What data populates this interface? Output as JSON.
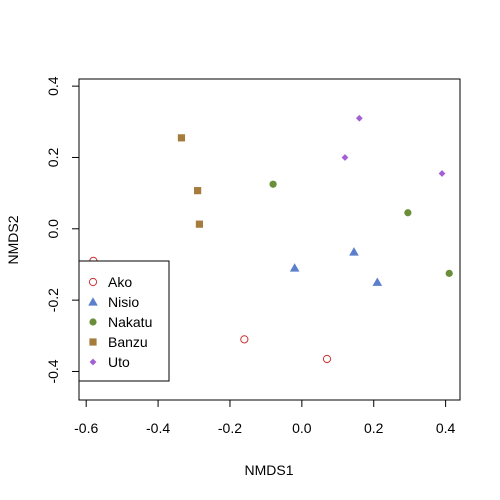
{
  "chart_data": {
    "type": "scatter",
    "title": "",
    "xlabel": "NMDS1",
    "ylabel": "NMDS2",
    "xlim": [
      -0.62,
      0.44
    ],
    "ylim": [
      -0.48,
      0.42
    ],
    "x_ticks": [
      -0.6,
      -0.4,
      -0.2,
      0.0,
      0.2,
      0.4
    ],
    "x_tick_labels": [
      "-0.6",
      "-0.4",
      "-0.2",
      "0.0",
      "0.2",
      "0.4"
    ],
    "y_ticks": [
      -0.4,
      -0.2,
      0.0,
      0.2,
      0.4
    ],
    "y_tick_labels": [
      "-0.4",
      "-0.2",
      "0.0",
      "0.2",
      "0.4"
    ],
    "grid": false,
    "legend_position": "bottom-left",
    "series": [
      {
        "name": "Ako",
        "marker": "open-circle",
        "color": "#cc3333",
        "points": [
          [
            -0.58,
            -0.09
          ],
          [
            -0.16,
            -0.31
          ],
          [
            0.07,
            -0.365
          ]
        ]
      },
      {
        "name": "Nisio",
        "marker": "triangle",
        "color": "#5b7fcc",
        "points": [
          [
            -0.02,
            -0.11
          ],
          [
            0.145,
            -0.065
          ],
          [
            0.21,
            -0.15
          ]
        ]
      },
      {
        "name": "Nakatu",
        "marker": "circle",
        "color": "#6b8e3a",
        "points": [
          [
            -0.08,
            0.125
          ],
          [
            0.295,
            0.045
          ],
          [
            0.41,
            -0.125
          ]
        ]
      },
      {
        "name": "Banzu",
        "marker": "square",
        "color": "#a67c3d",
        "points": [
          [
            -0.335,
            0.255
          ],
          [
            -0.29,
            0.107
          ],
          [
            -0.285,
            0.013
          ]
        ]
      },
      {
        "name": "Uto",
        "marker": "diamond",
        "color": "#a35fd4",
        "points": [
          [
            0.12,
            0.2
          ],
          [
            0.16,
            0.31
          ],
          [
            0.39,
            0.155
          ]
        ]
      }
    ]
  }
}
